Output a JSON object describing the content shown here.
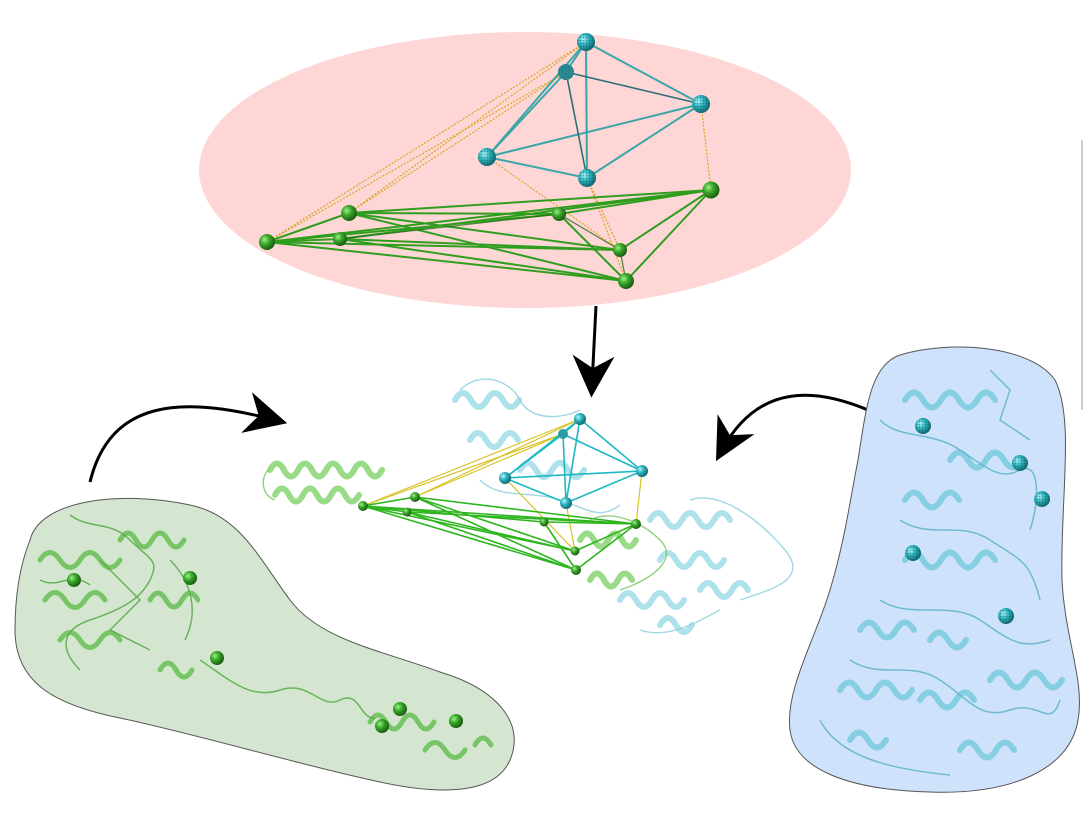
{
  "figure": {
    "panels": [
      {
        "id": "distance-restraint-network",
        "fill_color": "#ffd6d6"
      },
      {
        "id": "green-protein-surface",
        "fill_color": "#d4e6cf",
        "sphere_color": "#1a9e1a"
      },
      {
        "id": "blue-protein-surface",
        "fill_color": "#cfe2fb",
        "sphere_color": "#1aa9b5"
      },
      {
        "id": "docked-complex"
      }
    ],
    "colors": {
      "green_edges": "#2f9e1f",
      "cyan_edges": "#3aa6a8",
      "crosslink_edges": "#d9a520",
      "arrows": "#000000",
      "green_ribbon": "#7ccf6a",
      "cyan_ribbon": "#7fd3e0"
    },
    "icons": [
      "green-sphere-icon",
      "cyan-sphere-icon",
      "helix-ribbon-icon",
      "arrow-icon"
    ]
  }
}
